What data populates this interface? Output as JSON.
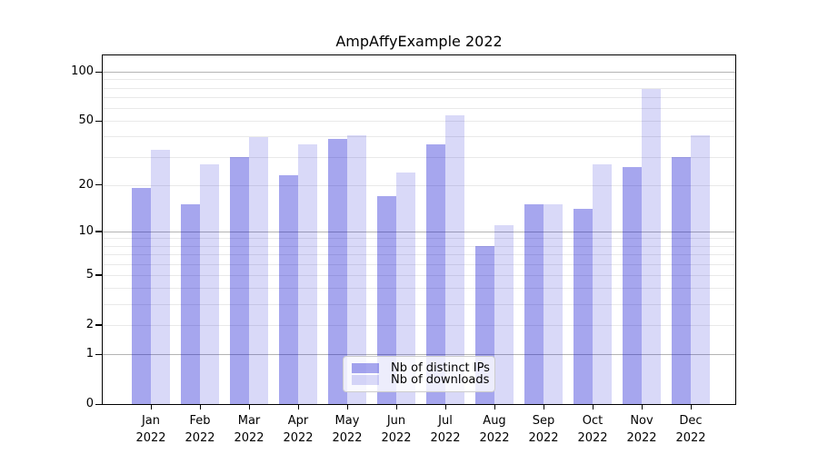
{
  "chart_data": {
    "type": "bar",
    "title": "AmpAffyExample 2022",
    "categories": [
      "Jan",
      "Feb",
      "Mar",
      "Apr",
      "May",
      "Jun",
      "Jul",
      "Aug",
      "Sep",
      "Oct",
      "Nov",
      "Dec"
    ],
    "x_year_label": "2022",
    "series": [
      {
        "name": "Nb of distinct IPs",
        "color": "#0000CD",
        "alpha": 0.35,
        "rendered_color": "#a7a7f0",
        "values": [
          19,
          15,
          30,
          23,
          39,
          17,
          36,
          8,
          15,
          14,
          26,
          30
        ]
      },
      {
        "name": "Nb of downloads",
        "color": "#0000CD",
        "alpha": 0.15,
        "rendered_color": "#d9d9f7",
        "values": [
          33,
          27,
          40,
          36,
          41,
          24,
          54,
          11,
          15,
          27,
          79,
          41
        ]
      }
    ],
    "y_axis": {
      "scale": "log1p",
      "tick_values": [
        100,
        50,
        20,
        10,
        5,
        2,
        1,
        0
      ],
      "major_gridlines": [
        1,
        10,
        100
      ],
      "minor_gridlines": [
        2,
        3,
        4,
        5,
        6,
        7,
        8,
        9,
        20,
        30,
        40,
        50,
        60,
        70,
        80,
        90
      ],
      "ylim": [
        0,
        125
      ]
    },
    "legend": {
      "position": "lower-center"
    },
    "grid": true
  }
}
